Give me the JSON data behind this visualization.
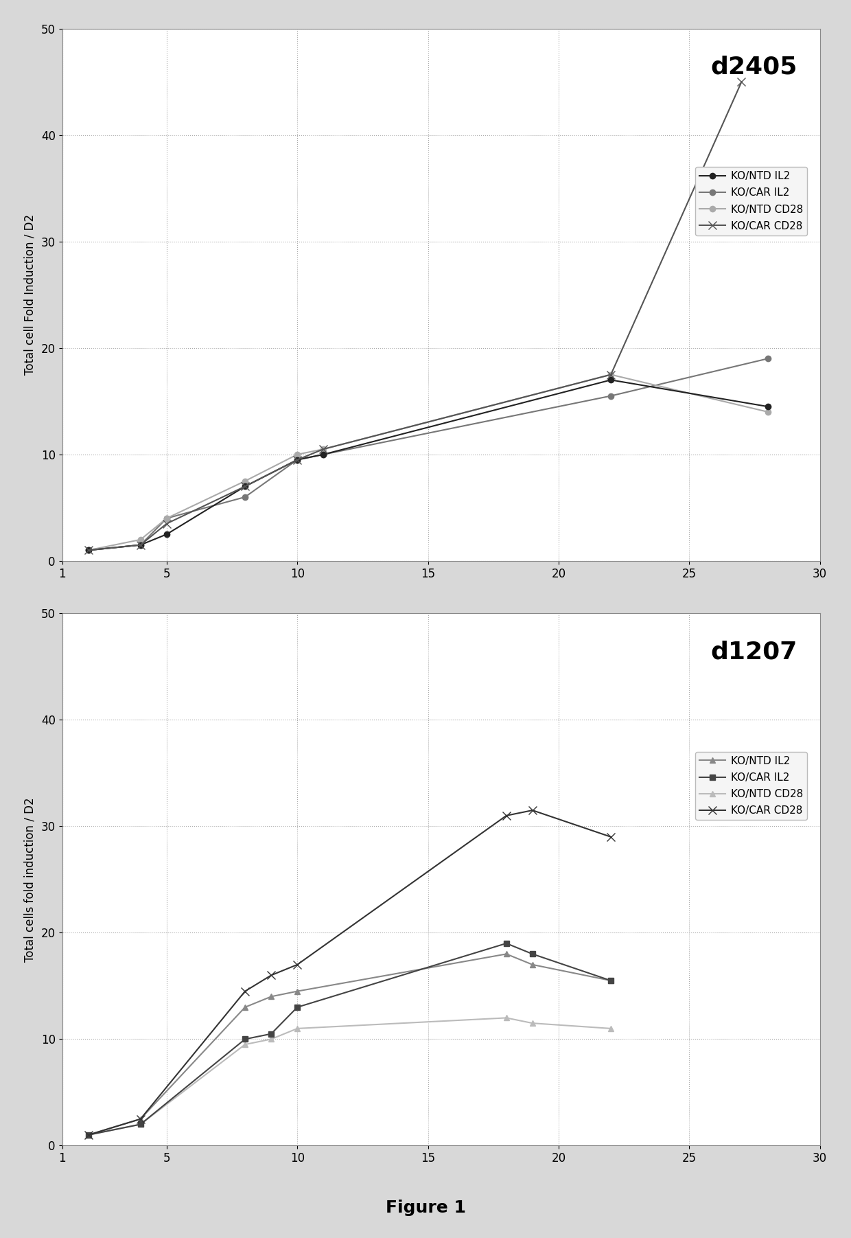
{
  "chart1": {
    "title": "d2405",
    "ylabel": "Total cell Fold Induction / D2",
    "xlim": [
      1,
      30
    ],
    "ylim": [
      0,
      50
    ],
    "xticks": [
      1,
      5,
      10,
      15,
      20,
      25,
      30
    ],
    "xticklabels": [
      "1",
      "5",
      "10",
      "15",
      "20",
      "25",
      "30"
    ],
    "yticks": [
      0,
      10,
      20,
      30,
      40,
      50
    ],
    "series": [
      {
        "label": "KO/NTD IL2",
        "x": [
          2,
          4,
          5,
          8,
          10,
          11,
          22,
          28
        ],
        "y": [
          1.0,
          1.5,
          2.5,
          7.0,
          9.5,
          10.0,
          17.0,
          14.5
        ],
        "color": "#222222",
        "marker": "o",
        "linewidth": 1.5,
        "markersize": 6,
        "zorder": 4
      },
      {
        "label": "KO/CAR IL2",
        "x": [
          2,
          4,
          5,
          8,
          10,
          11,
          22,
          28
        ],
        "y": [
          1.0,
          1.5,
          4.0,
          6.0,
          9.5,
          10.0,
          15.5,
          19.0
        ],
        "color": "#777777",
        "marker": "o",
        "linewidth": 1.5,
        "markersize": 6,
        "zorder": 3
      },
      {
        "label": "KO/NTD CD28",
        "x": [
          2,
          4,
          5,
          8,
          10,
          11,
          22,
          28
        ],
        "y": [
          1.0,
          2.0,
          4.0,
          7.5,
          10.0,
          10.5,
          17.5,
          14.0
        ],
        "color": "#aaaaaa",
        "marker": "o",
        "linewidth": 1.5,
        "markersize": 6,
        "zorder": 3
      },
      {
        "label": "KO/CAR CD28",
        "x": [
          2,
          4,
          5,
          8,
          10,
          11,
          22,
          27
        ],
        "y": [
          1.0,
          1.5,
          3.5,
          7.0,
          9.5,
          10.5,
          17.5,
          45.0
        ],
        "color": "#555555",
        "marker": "x",
        "linewidth": 1.5,
        "markersize": 8,
        "zorder": 5
      }
    ]
  },
  "chart2": {
    "title": "d1207",
    "ylabel": "Total cells fold induction / D2",
    "xlim": [
      1,
      30
    ],
    "ylim": [
      0,
      50
    ],
    "xticks": [
      1,
      5,
      10,
      15,
      20,
      25,
      30
    ],
    "xticklabels": [
      "1",
      "5",
      "10",
      "15",
      "20",
      "25",
      "30"
    ],
    "yticks": [
      0,
      10,
      20,
      30,
      40,
      50
    ],
    "series": [
      {
        "label": "KO/NTD IL2",
        "x": [
          2,
          4,
          8,
          9,
          10,
          18,
          19,
          22
        ],
        "y": [
          1.0,
          2.5,
          13.0,
          14.0,
          14.5,
          18.0,
          17.0,
          15.5
        ],
        "color": "#888888",
        "marker": "^",
        "linewidth": 1.5,
        "markersize": 6,
        "zorder": 3
      },
      {
        "label": "KO/CAR IL2",
        "x": [
          2,
          4,
          8,
          9,
          10,
          18,
          19,
          22
        ],
        "y": [
          1.0,
          2.0,
          10.0,
          10.5,
          13.0,
          19.0,
          18.0,
          15.5
        ],
        "color": "#444444",
        "marker": "s",
        "linewidth": 1.5,
        "markersize": 6,
        "zorder": 4
      },
      {
        "label": "KO/NTD CD28",
        "x": [
          2,
          4,
          8,
          9,
          10,
          18,
          19,
          22
        ],
        "y": [
          1.0,
          2.0,
          9.5,
          10.0,
          11.0,
          12.0,
          11.5,
          11.0
        ],
        "color": "#bbbbbb",
        "marker": "^",
        "linewidth": 1.5,
        "markersize": 6,
        "zorder": 2
      },
      {
        "label": "KO/CAR CD28",
        "x": [
          2,
          4,
          8,
          9,
          10,
          18,
          19,
          22
        ],
        "y": [
          1.0,
          2.5,
          14.5,
          16.0,
          17.0,
          31.0,
          31.5,
          29.0
        ],
        "color": "#333333",
        "marker": "x",
        "linewidth": 1.5,
        "markersize": 8,
        "zorder": 5
      }
    ]
  },
  "figure_label": "Figure 1",
  "plot_bg_color": "#ffffff",
  "fig_bg_color": "#d8d8d8",
  "grid_color": "#aaaaaa",
  "grid_style": ":",
  "title_fontsize": 26,
  "label_fontsize": 12,
  "legend_fontsize": 11,
  "tick_fontsize": 12
}
